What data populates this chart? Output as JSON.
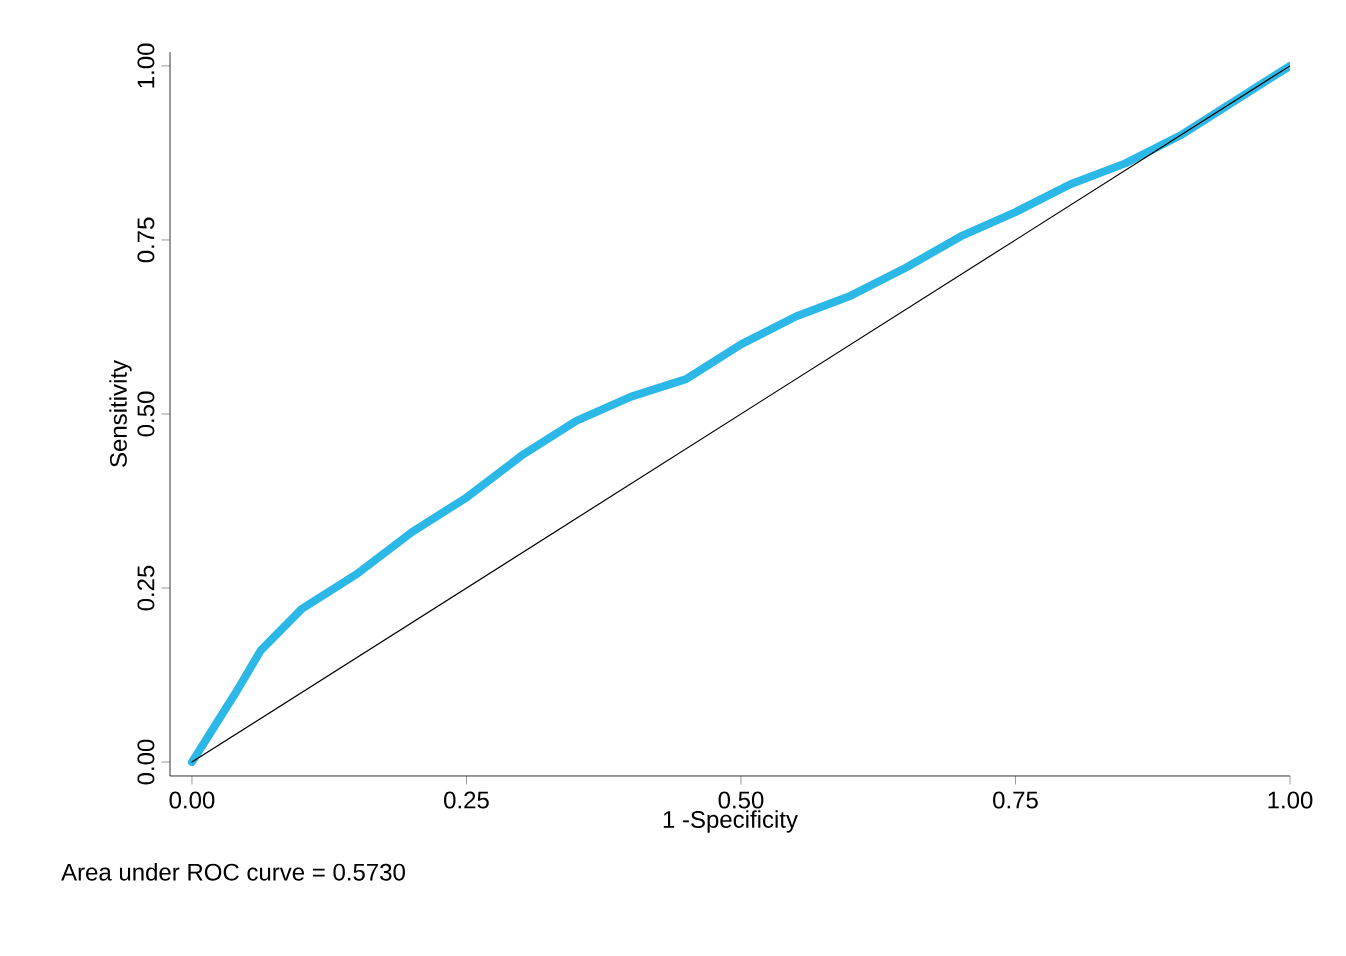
{
  "chart_data": {
    "type": "line",
    "xlabel": "1 -Specificity",
    "ylabel": "Sensitivity",
    "xlim": [
      -0.02,
      1.0
    ],
    "ylim": [
      -0.02,
      1.02
    ],
    "xticks": [
      {
        "value": 0,
        "label": "0.00"
      },
      {
        "value": 0.25,
        "label": "0.25"
      },
      {
        "value": 0.5,
        "label": "0.50"
      },
      {
        "value": 0.75,
        "label": "0.75"
      },
      {
        "value": 1,
        "label": "1.00"
      }
    ],
    "yticks": [
      {
        "value": 0,
        "label": "0.00"
      },
      {
        "value": 0.25,
        "label": "0.25"
      },
      {
        "value": 0.5,
        "label": "0.50"
      },
      {
        "value": 0.75,
        "label": "0.75"
      },
      {
        "value": 1,
        "label": "1.00"
      }
    ],
    "annotations": [
      "Area under ROC curve = 0.5730"
    ],
    "series": [
      {
        "color": "#2bb8e6",
        "x": [
          0,
          0.02,
          0.04,
          0.0625,
          0.1,
          0.15,
          0.2,
          0.25,
          0.3,
          0.35,
          0.4,
          0.45,
          0.5,
          0.55,
          0.6,
          0.65,
          0.7,
          0.75,
          0.8,
          0.85,
          0.9,
          0.95,
          1
        ],
        "values": [
          0,
          0.05,
          0.1,
          0.16,
          0.22,
          0.27,
          0.33,
          0.38,
          0.44,
          0.49,
          0.525,
          0.55,
          0.6,
          0.64,
          0.67,
          0.71,
          0.755,
          0.79,
          0.83,
          0.86,
          0.9,
          0.95,
          1
        ]
      },
      {
        "color": "#000000",
        "x": [
          0,
          1
        ],
        "values": [
          0,
          1
        ]
      }
    ]
  }
}
